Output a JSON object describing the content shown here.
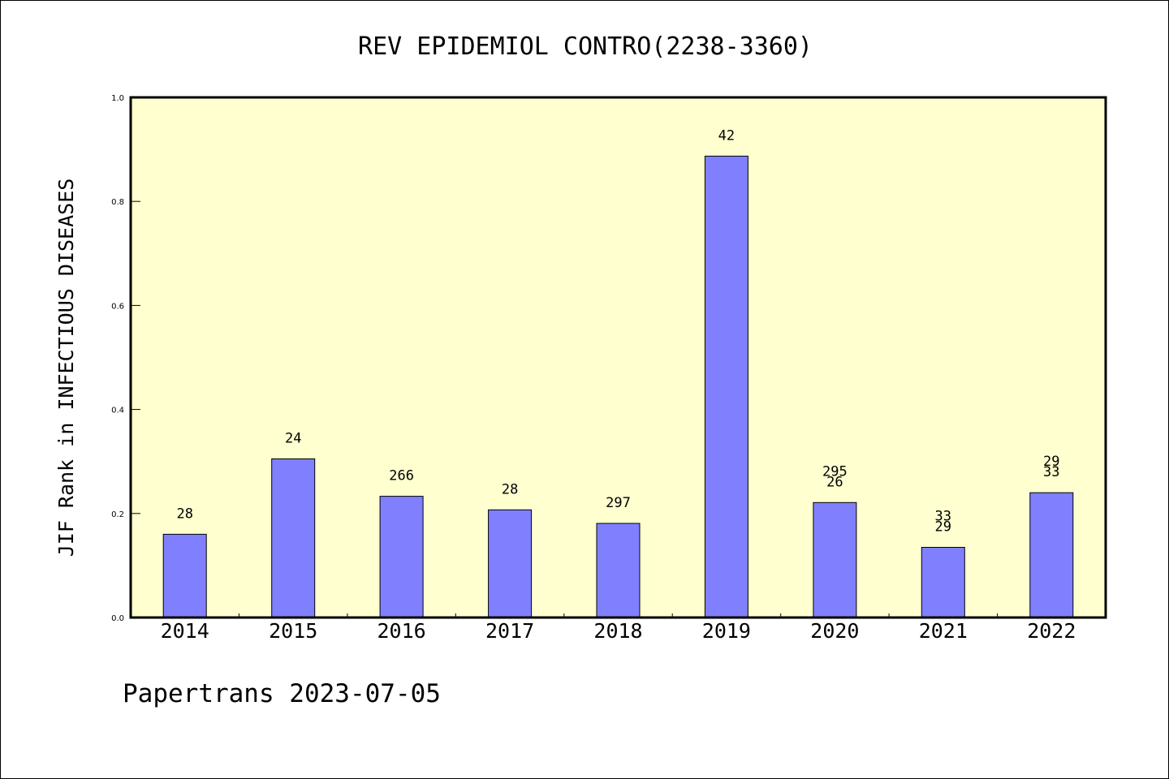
{
  "footer": "Papertrans 2023-07-05",
  "colors": {
    "plot_background": "#ffffd0",
    "bar_fill": "#8080ff",
    "bar_stroke": "#000000",
    "axis": "#000000"
  },
  "chart_data": {
    "type": "bar",
    "title": "REV EPIDEMIOL CONTRO(2238-3360)",
    "xlabel": "",
    "ylabel": "JIF Rank in INFECTIOUS DISEASES",
    "ylim": [
      0.0,
      1.0
    ],
    "yticks": [
      "0.0",
      "0.2",
      "0.4",
      "0.6",
      "0.8",
      "1.0"
    ],
    "grid": false,
    "categories": [
      "2014",
      "2015",
      "2016",
      "2017",
      "2018",
      "2019",
      "2020",
      "2021",
      "2022"
    ],
    "values": [
      0.16,
      0.305,
      0.233,
      0.207,
      0.181,
      0.887,
      0.221,
      0.135,
      0.24
    ],
    "bar_labels": [
      [
        "28"
      ],
      [
        "24"
      ],
      [
        "266"
      ],
      [
        "28"
      ],
      [
        "297"
      ],
      [
        "42"
      ],
      [
        "295",
        "26"
      ],
      [
        "33",
        "29"
      ],
      [
        "29",
        "33"
      ]
    ]
  }
}
